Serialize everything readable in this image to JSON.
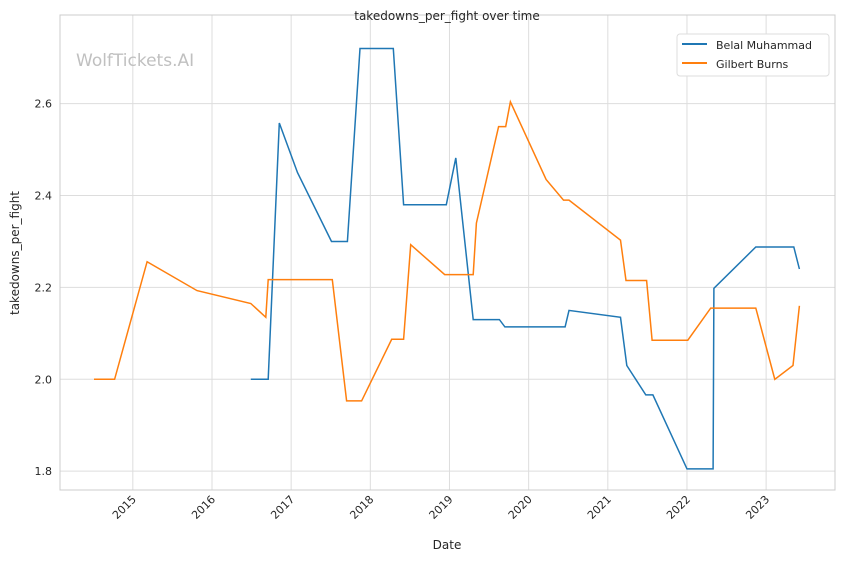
{
  "chart_data": {
    "type": "line",
    "title": "takedowns_per_fight over time",
    "xlabel": "Date",
    "ylabel": "takedowns_per_fight",
    "watermark": "WolfTickets.AI",
    "xlim": [
      2014.08,
      2023.87
    ],
    "ylim": [
      1.759,
      2.793
    ],
    "xticks": [
      2015,
      2016,
      2017,
      2018,
      2019,
      2020,
      2021,
      2022,
      2023
    ],
    "yticks": [
      1.8,
      2.0,
      2.2,
      2.4,
      2.6
    ],
    "ytick_labels": [
      "1.8",
      "2.0",
      "2.2",
      "2.4",
      "2.6"
    ],
    "xtick_labels": [
      "2015",
      "2016",
      "2017",
      "2018",
      "2019",
      "2020",
      "2021",
      "2022",
      "2023"
    ],
    "grid": true,
    "legend": "top-right",
    "series": [
      {
        "name": "Belal Muhammad",
        "color": "#1f77b4",
        "x": [
          2016.49,
          2016.71,
          2016.85,
          2017.08,
          2017.51,
          2017.71,
          2017.87,
          2018.29,
          2018.42,
          2018.96,
          2019.08,
          2019.3,
          2019.63,
          2019.7,
          2020.46,
          2020.51,
          2021.16,
          2021.24,
          2021.48,
          2021.57,
          2022.0,
          2022.33,
          2022.34,
          2022.87,
          2023.35,
          2023.42
        ],
        "y": [
          2.0,
          2.0,
          2.558,
          2.45,
          2.3,
          2.3,
          2.72,
          2.72,
          2.38,
          2.38,
          2.482,
          2.13,
          2.13,
          2.114,
          2.114,
          2.15,
          2.135,
          2.03,
          1.966,
          1.966,
          1.805,
          1.805,
          2.198,
          2.288,
          2.288,
          2.24
        ]
      },
      {
        "name": "Gilbert Burns",
        "color": "#ff7f0e",
        "x": [
          2014.51,
          2014.77,
          2015.18,
          2015.81,
          2016.49,
          2016.68,
          2016.71,
          2017.52,
          2017.7,
          2017.89,
          2018.27,
          2018.42,
          2018.51,
          2018.94,
          2019.3,
          2019.34,
          2019.62,
          2019.71,
          2019.77,
          2020.22,
          2020.44,
          2020.51,
          2021.16,
          2021.23,
          2021.49,
          2021.56,
          2022.01,
          2022.3,
          2022.87,
          2023.11,
          2023.34,
          2023.42
        ],
        "y": [
          2.0,
          2.0,
          2.256,
          2.193,
          2.165,
          2.135,
          2.217,
          2.217,
          1.953,
          1.953,
          2.087,
          2.087,
          2.293,
          2.228,
          2.228,
          2.34,
          2.55,
          2.55,
          2.604,
          2.435,
          2.39,
          2.39,
          2.303,
          2.215,
          2.215,
          2.085,
          2.085,
          2.155,
          2.155,
          2.0,
          2.03,
          2.16
        ]
      }
    ]
  }
}
